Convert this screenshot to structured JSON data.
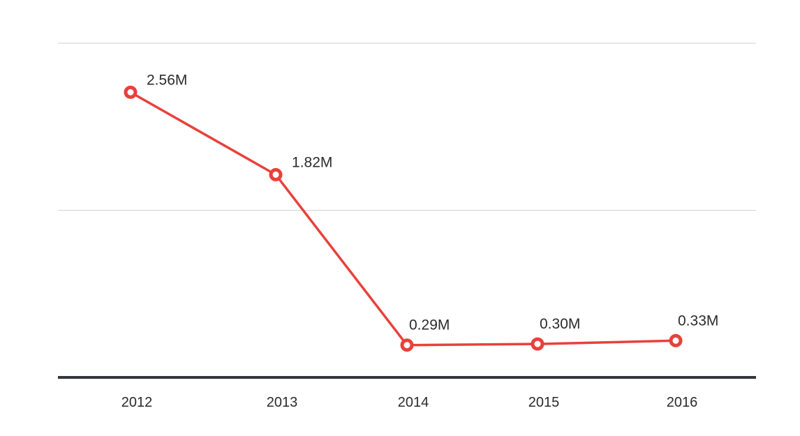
{
  "chart_data": {
    "type": "line",
    "categories": [
      "2012",
      "2013",
      "2014",
      "2015",
      "2016"
    ],
    "series": [
      {
        "values": [
          2.56,
          1.82,
          0.29,
          0.3,
          0.33
        ],
        "labels": [
          "2.56M",
          "1.82M",
          "0.29M",
          "0.30M",
          "0.33M"
        ],
        "color": "#e8413b"
      }
    ],
    "ylim": [
      0,
      3
    ],
    "gridlines": [
      1.5,
      3
    ],
    "grid": true,
    "legend": "none",
    "baseline_color": "#33373d",
    "grid_color": "#d2d2d2"
  }
}
